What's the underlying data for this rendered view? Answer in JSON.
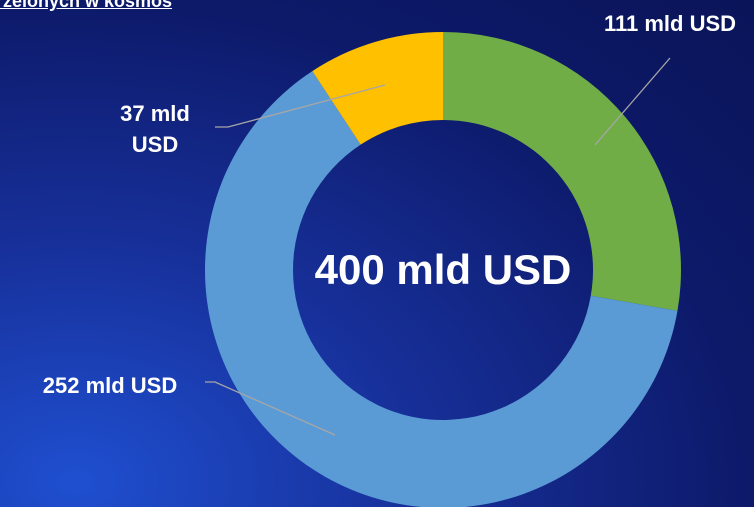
{
  "chart_data": {
    "type": "donut",
    "title": "rzelonych w kosmos",
    "categories": [
      null,
      null,
      null
    ],
    "values": [
      111,
      252,
      37
    ],
    "value_labels": [
      "111 mld USD",
      "252 mld USD",
      "37 mld USD"
    ],
    "colors": [
      "#70ad47",
      "#5b9bd5",
      "#ffc000"
    ],
    "center_label": "400 mld USD"
  }
}
